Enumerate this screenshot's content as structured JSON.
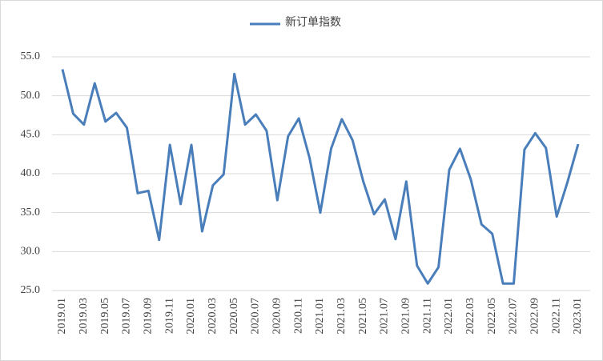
{
  "chart_data": {
    "type": "line",
    "categories": [
      "2019.01",
      null,
      "2019.03",
      null,
      "2019.05",
      null,
      "2019.07",
      null,
      "2019.09",
      null,
      "2019.11",
      null,
      "2020.01",
      null,
      "2020.03",
      null,
      "2020.05",
      null,
      "2020.07",
      null,
      "2020.09",
      null,
      "2020.11",
      null,
      "2021.01",
      null,
      "2021.03",
      null,
      "2021.05",
      null,
      "2021.07",
      null,
      "2021.09",
      null,
      "2021.11",
      null,
      "2022.01",
      null,
      "2022.03",
      null,
      "2022.05",
      null,
      "2022.07",
      null,
      "2022.09",
      null,
      "2022.11",
      null,
      "2023.01"
    ],
    "series": [
      {
        "name": "新订单指数",
        "color": "#4a7ebb",
        "values": [
          53.4,
          47.7,
          46.3,
          51.6,
          46.7,
          47.8,
          45.9,
          37.5,
          37.8,
          31.5,
          43.7,
          36.1,
          43.7,
          32.6,
          38.5,
          39.9,
          52.8,
          46.3,
          47.6,
          45.5,
          36.6,
          44.8,
          47.1,
          42.0,
          35.0,
          43.2,
          47.0,
          44.3,
          39.0,
          34.8,
          36.7,
          31.6,
          39.0,
          28.2,
          25.9,
          28.0,
          40.5,
          43.2,
          39.3,
          33.5,
          32.3,
          25.9,
          25.9,
          43.1,
          45.2,
          43.3,
          34.5,
          38.9,
          43.8
        ]
      }
    ],
    "ylim": [
      25,
      55
    ],
    "yticks": [
      {
        "value": 25,
        "label": "25.0"
      },
      {
        "value": 30,
        "label": "30.0"
      },
      {
        "value": 35,
        "label": "35.0"
      },
      {
        "value": 40,
        "label": "40.0"
      },
      {
        "value": 45,
        "label": "45.0"
      },
      {
        "value": 50,
        "label": "50.0"
      },
      {
        "value": 55,
        "label": "55.0"
      }
    ],
    "grid": true,
    "legend": "top"
  }
}
